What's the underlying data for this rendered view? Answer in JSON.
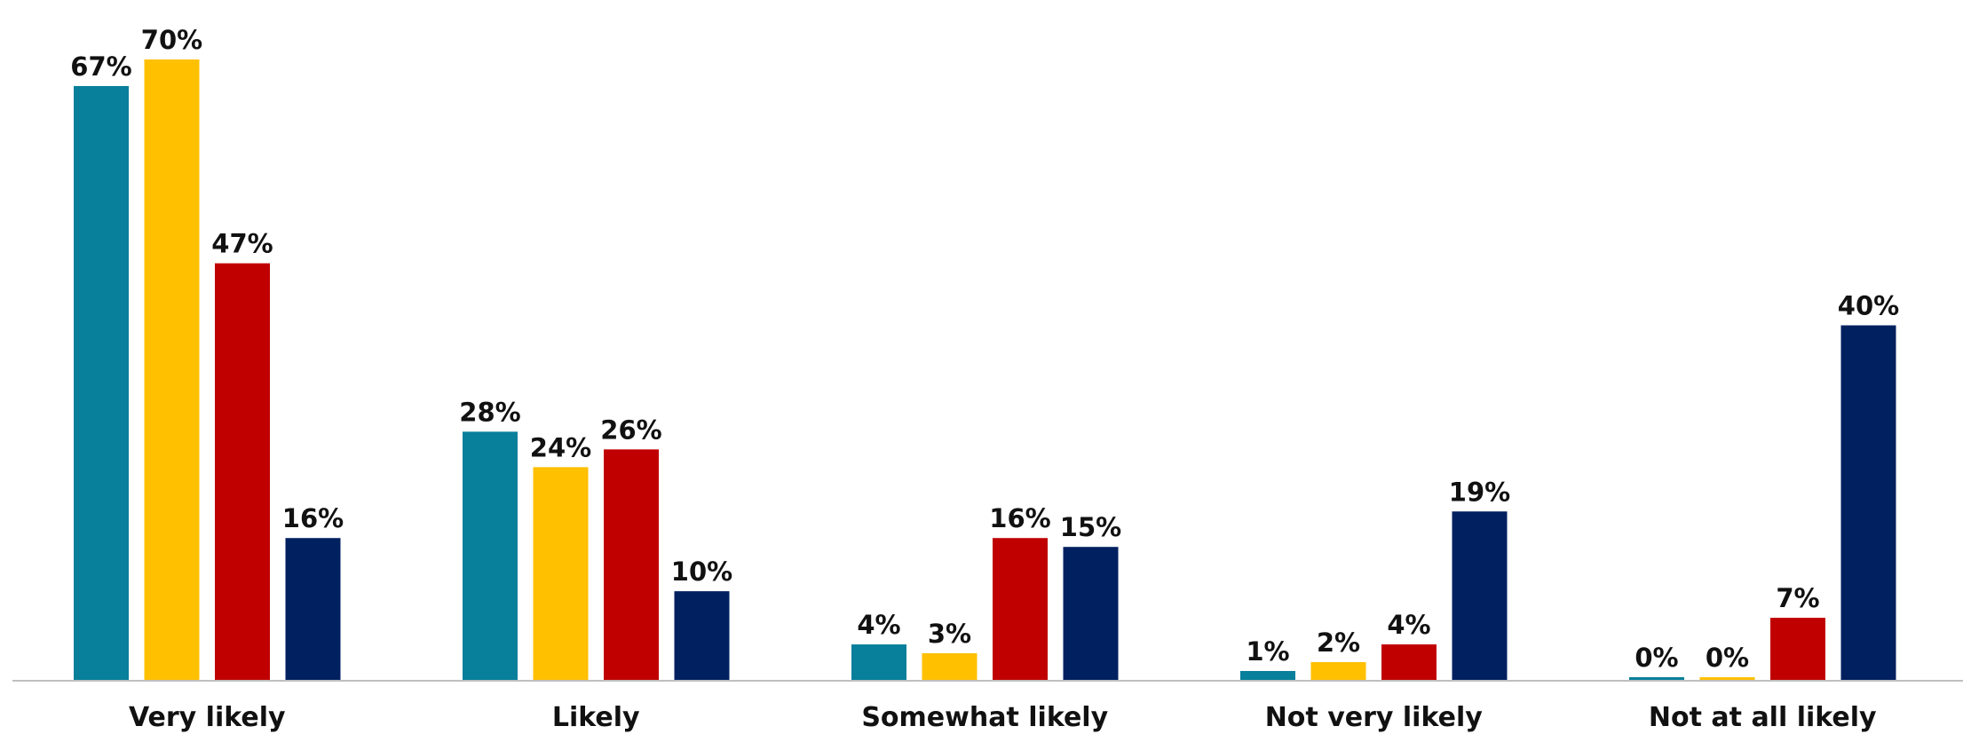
{
  "chart_data": {
    "type": "bar",
    "categories": [
      "Very likely",
      "Likely",
      "Somewhat likely",
      "Not very likely",
      "Not at all likely"
    ],
    "series": [
      {
        "values": [
          67,
          28,
          4,
          1,
          0
        ],
        "labels": [
          "67%",
          "28%",
          "4%",
          "1%",
          "0%"
        ],
        "color": "#087F9B"
      },
      {
        "values": [
          70,
          24,
          3,
          2,
          0
        ],
        "labels": [
          "70%",
          "24%",
          "3%",
          "2%",
          "0%"
        ],
        "color": "#FFC000"
      },
      {
        "values": [
          47,
          26,
          16,
          4,
          7
        ],
        "labels": [
          "47%",
          "26%",
          "16%",
          "4%",
          "7%"
        ],
        "color": "#C00000"
      },
      {
        "values": [
          16,
          10,
          15,
          19,
          40
        ],
        "labels": [
          "16%",
          "10%",
          "15%",
          "19%",
          "40%"
        ],
        "color": "#002060"
      }
    ],
    "ylim": [
      0,
      72
    ],
    "grid": false,
    "legend": "none",
    "axis_color": "#BFBFBF"
  }
}
